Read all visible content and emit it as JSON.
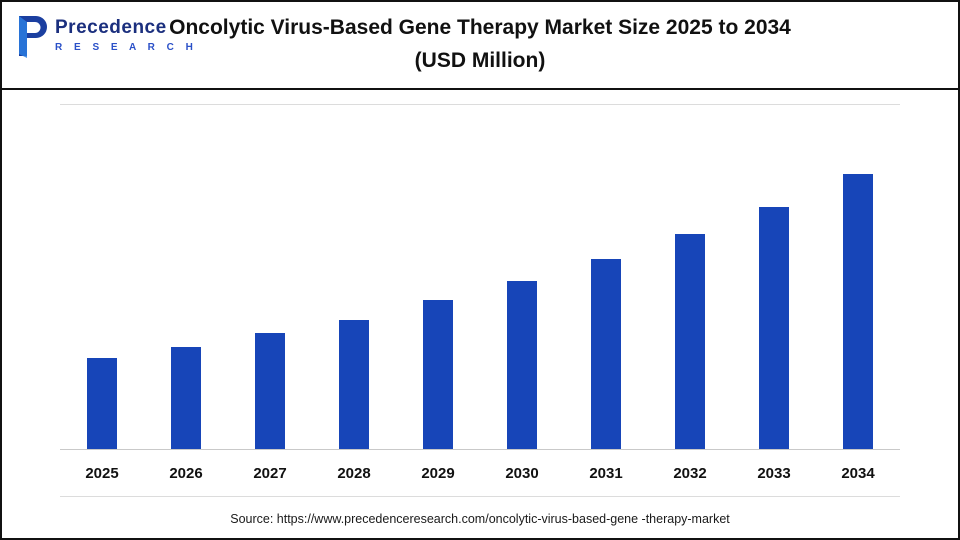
{
  "header": {
    "logo": {
      "name": "Precedence",
      "sub": "R E S E A R C H",
      "icon_color": "#1b3fa0",
      "icon_accent": "#2a7de1"
    },
    "title_line1": "Oncolytic Virus-Based Gene Therapy Market Size 2025 to 2034",
    "title_line2": "(USD Million)"
  },
  "chart_data": {
    "type": "bar",
    "title": "Oncolytic Virus-Based Gene Therapy Market Size 2025 to 2034 (USD Million)",
    "categories": [
      "2025",
      "2026",
      "2027",
      "2028",
      "2029",
      "2030",
      "2031",
      "2032",
      "2033",
      "2034"
    ],
    "values": [
      33,
      37,
      42,
      47,
      54,
      61,
      69,
      78,
      88,
      100
    ],
    "values_note": "relative bar heights; no y-axis scale or data labels are shown in the chart",
    "xlabel": "",
    "ylabel": "",
    "grid": "off",
    "legend": "none",
    "bar_color": "#1745b8"
  },
  "footer": {
    "source": "Source: https://www.precedenceresearch.com/oncolytic-virus-based-gene -therapy-market"
  }
}
